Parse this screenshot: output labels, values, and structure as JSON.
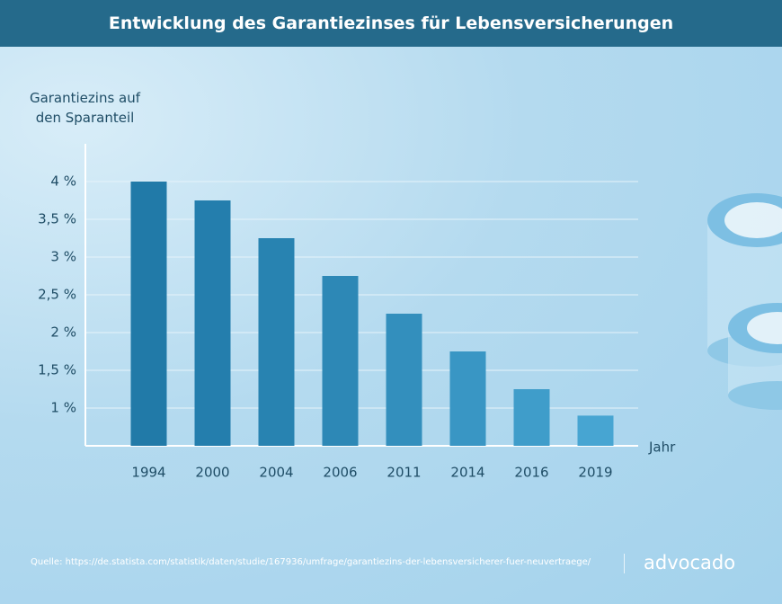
{
  "chart_data": {
    "type": "bar",
    "title": "Entwicklung des Garantiezinses für Lebensversicherungen",
    "y_label": "Garantiezins auf den Sparanteil",
    "x_label": "Jahr",
    "categories": [
      "1994",
      "2000",
      "2004",
      "2006",
      "2011",
      "2014",
      "2016",
      "2019"
    ],
    "values": [
      4,
      3.75,
      3.25,
      2.75,
      2.25,
      1.75,
      1.25,
      0.9
    ],
    "colors": [
      "#217aa8",
      "#247ead",
      "#2883b1",
      "#2d88b6",
      "#338fbd",
      "#3996c4",
      "#3f9dca",
      "#47a5d2"
    ],
    "ylim": [
      0.5,
      4.5
    ],
    "yticks": [
      {
        "value": 1,
        "label": "1 %"
      },
      {
        "value": 1.5,
        "label": "1,5 %"
      },
      {
        "value": 2,
        "label": "2 %"
      },
      {
        "value": 2.5,
        "label": "2,5 %"
      },
      {
        "value": 3,
        "label": "3 %"
      },
      {
        "value": 3.5,
        "label": "3,5 %"
      },
      {
        "value": 4,
        "label": "4 %"
      }
    ],
    "grid": true,
    "source": "Quelle: https://de.statista.com/statistik/daten/studie/167936/umfrage/garantiezins-der-lebensversicherer-fuer-neuvertraege/",
    "logo": "advocado"
  }
}
